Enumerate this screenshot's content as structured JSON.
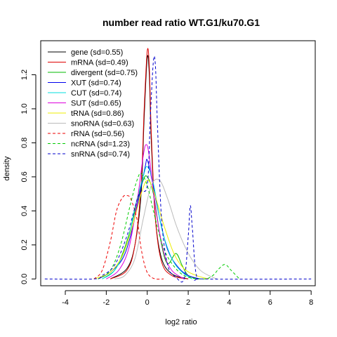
{
  "chart_data": {
    "type": "line",
    "title": "number read ratio WT.G1/ku70.G1",
    "xlabel": "log2 ratio",
    "ylabel": "density",
    "xlim": [
      -5.2,
      8.2
    ],
    "ylim": [
      -0.04,
      1.4
    ],
    "x_ticks": [
      "-4",
      "-2",
      "0",
      "2",
      "4",
      "6",
      "8"
    ],
    "x_tick_values": [
      -4,
      -2,
      0,
      2,
      4,
      6,
      8
    ],
    "y_ticks": [
      "0.0",
      "0.2",
      "0.4",
      "0.6",
      "0.8",
      "1.0",
      "1.2"
    ],
    "y_tick_values": [
      0,
      0.2,
      0.4,
      0.6,
      0.8,
      1.0,
      1.2
    ],
    "legend_position": "top-left",
    "grid": false,
    "series": [
      {
        "name": "gene (sd=0.55)",
        "color": "#000000",
        "dash": "solid",
        "x": [
          -1.8,
          -1.0,
          -0.6,
          -0.3,
          -0.15,
          0.0,
          0.1,
          0.2,
          0.4,
          0.7,
          1.2,
          2.0
        ],
        "y": [
          0.0,
          0.06,
          0.2,
          0.5,
          0.95,
          1.3,
          1.2,
          0.8,
          0.35,
          0.12,
          0.03,
          0.0
        ]
      },
      {
        "name": "mRNA (sd=0.49)",
        "color": "#df0000",
        "dash": "solid",
        "x": [
          -1.8,
          -1.0,
          -0.6,
          -0.3,
          -0.15,
          0.0,
          0.1,
          0.2,
          0.4,
          0.7,
          1.2,
          2.0
        ],
        "y": [
          0.0,
          0.05,
          0.2,
          0.55,
          1.0,
          1.34,
          1.25,
          0.85,
          0.35,
          0.1,
          0.02,
          0.0
        ]
      },
      {
        "name": "divergent (sd=0.75)",
        "color": "#00bb00",
        "dash": "solid",
        "x": [
          -2.2,
          -1.6,
          -1.2,
          -0.8,
          -0.5,
          -0.2,
          0.0,
          0.3,
          0.7,
          1.0,
          1.4,
          1.7,
          2.0,
          2.5
        ],
        "y": [
          0.0,
          0.05,
          0.15,
          0.3,
          0.45,
          0.58,
          0.6,
          0.5,
          0.2,
          0.09,
          0.15,
          0.08,
          0.02,
          0.0
        ]
      },
      {
        "name": "XUT (sd=0.74)",
        "color": "#0000ee",
        "dash": "solid",
        "x": [
          -2.4,
          -1.8,
          -1.2,
          -0.8,
          -0.4,
          -0.1,
          0.0,
          0.2,
          0.6,
          1.0,
          1.5,
          2.0,
          2.6
        ],
        "y": [
          0.0,
          0.04,
          0.12,
          0.26,
          0.48,
          0.66,
          0.7,
          0.6,
          0.36,
          0.17,
          0.07,
          0.02,
          0.0
        ]
      },
      {
        "name": "CUT (sd=0.74)",
        "color": "#00dddd",
        "dash": "solid",
        "x": [
          -2.2,
          -1.6,
          -1.0,
          -0.6,
          -0.2,
          0.0,
          0.3,
          0.7,
          1.2,
          1.7,
          2.2
        ],
        "y": [
          0.0,
          0.05,
          0.2,
          0.42,
          0.6,
          0.66,
          0.56,
          0.3,
          0.12,
          0.04,
          0.0
        ]
      },
      {
        "name": "SUT (sd=0.65)",
        "color": "#dd00dd",
        "dash": "solid",
        "x": [
          -2.0,
          -1.4,
          -0.9,
          -0.5,
          -0.2,
          -0.05,
          0.1,
          0.4,
          0.8,
          1.2,
          1.8
        ],
        "y": [
          0.0,
          0.05,
          0.18,
          0.45,
          0.72,
          0.79,
          0.72,
          0.42,
          0.16,
          0.05,
          0.0
        ]
      },
      {
        "name": "tRNA (sd=0.86)",
        "color": "#eeee00",
        "dash": "solid",
        "x": [
          -2.6,
          -1.8,
          -1.2,
          -0.7,
          -0.3,
          0.0,
          0.3,
          0.8,
          1.3,
          1.8,
          2.4,
          3.0
        ],
        "y": [
          0.0,
          0.04,
          0.14,
          0.32,
          0.5,
          0.58,
          0.52,
          0.32,
          0.15,
          0.06,
          0.02,
          0.0
        ]
      },
      {
        "name": "snoRNA (sd=0.63)",
        "color": "#bbbbbb",
        "dash": "solid",
        "x": [
          -1.6,
          -1.1,
          -0.6,
          -0.2,
          0.2,
          0.6,
          1.0,
          1.4,
          1.8,
          2.2,
          2.6,
          3.0,
          3.4
        ],
        "y": [
          0.0,
          0.02,
          0.12,
          0.35,
          0.55,
          0.58,
          0.47,
          0.32,
          0.2,
          0.11,
          0.05,
          0.02,
          0.0
        ]
      },
      {
        "name": "rRNA (sd=0.56)",
        "color": "#ee0000",
        "dash": "dashed",
        "x": [
          -2.6,
          -2.2,
          -1.8,
          -1.5,
          -1.2,
          -1.0,
          -0.8,
          -0.5,
          -0.3,
          -0.1,
          0.1,
          0.4,
          0.8
        ],
        "y": [
          0.0,
          0.05,
          0.22,
          0.4,
          0.48,
          0.49,
          0.47,
          0.35,
          0.18,
          0.07,
          0.02,
          0.0,
          0.0
        ]
      },
      {
        "name": "ncRNA (sd=1.23)",
        "color": "#00cc00",
        "dash": "dashed",
        "x": [
          -2.4,
          -1.8,
          -1.3,
          -0.8,
          -0.5,
          -0.3,
          0.0,
          0.3,
          0.8,
          1.4,
          2.0,
          2.8,
          3.2,
          3.5,
          3.8,
          4.1,
          4.5
        ],
        "y": [
          0.0,
          0.05,
          0.2,
          0.45,
          0.58,
          0.62,
          0.55,
          0.4,
          0.18,
          0.06,
          0.01,
          0.0,
          0.02,
          0.06,
          0.085,
          0.05,
          0.0
        ]
      },
      {
        "name": "snRNA (sd=0.74)",
        "color": "#0000cc",
        "dash": "dashed",
        "x": [
          -5.0,
          -2.6,
          -2.2,
          -1.6,
          -1.0,
          -0.4,
          0.0,
          0.15,
          0.3,
          0.4,
          0.5,
          0.7,
          1.0,
          1.4,
          1.8,
          2.0,
          2.1,
          2.2,
          2.4,
          2.8,
          8.0
        ],
        "y": [
          0.0,
          0.0,
          0.02,
          0.08,
          0.25,
          0.5,
          0.55,
          0.95,
          1.28,
          1.25,
          0.9,
          0.35,
          0.08,
          0.01,
          0.0,
          0.25,
          0.43,
          0.3,
          0.02,
          0.0,
          0.0
        ]
      }
    ]
  }
}
